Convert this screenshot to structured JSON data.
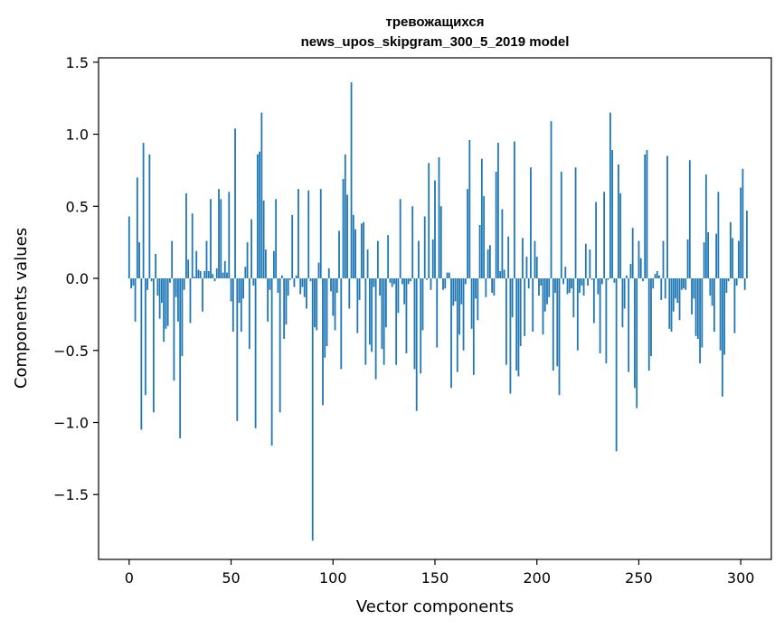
{
  "chart_data": {
    "type": "bar",
    "title_lines": [
      "тревожащихся",
      "news_upos_skipgram_300_5_2019 model"
    ],
    "xlabel": "Vector components",
    "ylabel": "Components values",
    "xlim": [
      -15,
      315
    ],
    "ylim": [
      -1.95,
      1.53
    ],
    "xticks": [
      0,
      50,
      100,
      150,
      200,
      250,
      300
    ],
    "yticks": [
      -1.5,
      -1.0,
      -0.5,
      0.0,
      0.5,
      1.0,
      1.5
    ],
    "xtick_labels": [
      "0",
      "50",
      "100",
      "150",
      "200",
      "250",
      "300"
    ],
    "ytick_labels": [
      "−1.5",
      "−1.0",
      "−0.5",
      "0.0",
      "0.5",
      "1.0",
      "1.5"
    ],
    "bar_color": "#1f77b4",
    "x_start": 0,
    "values": [
      0.43,
      -0.07,
      -0.05,
      -0.3,
      0.7,
      0.25,
      -1.05,
      0.94,
      -0.81,
      -0.08,
      0.86,
      -0.02,
      -0.93,
      0.17,
      -0.12,
      -0.28,
      -0.17,
      -0.44,
      -0.35,
      -0.33,
      -0.03,
      0.26,
      -0.71,
      -0.13,
      -0.3,
      -1.11,
      -0.54,
      -0.08,
      0.59,
      0.13,
      -0.31,
      0.45,
      0.01,
      0.19,
      0.06,
      0.05,
      -0.23,
      0.05,
      0.26,
      0.05,
      0.55,
      0.03,
      -0.02,
      0.07,
      0.62,
      0.55,
      0.04,
      0.12,
      0.04,
      0.6,
      -0.16,
      -0.37,
      1.04,
      -0.99,
      -0.17,
      -0.37,
      -0.14,
      0.08,
      0.25,
      -0.49,
      0.41,
      -0.05,
      -1.04,
      0.86,
      0.88,
      1.15,
      0.54,
      0.2,
      -0.3,
      -0.08,
      -1.16,
      0.19,
      0.55,
      -0.1,
      -0.93,
      0.02,
      -0.42,
      -0.32,
      -0.12,
      -0.01,
      0.44,
      -0.06,
      0.02,
      0.62,
      -0.11,
      -0.06,
      -0.13,
      -0.21,
      0.61,
      -0.02,
      -1.82,
      -0.34,
      -0.36,
      0.11,
      0.62,
      -0.88,
      -0.55,
      -0.47,
      0.07,
      -0.09,
      -0.26,
      -0.36,
      -0.1,
      0.33,
      -0.63,
      0.69,
      0.86,
      0.58,
      -0.21,
      1.36,
      0.44,
      0.34,
      -0.38,
      -0.15,
      0.38,
      0.39,
      -0.6,
      0.2,
      -0.46,
      -0.51,
      -0.06,
      -0.7,
      0.26,
      -0.12,
      -0.49,
      -0.6,
      -0.34,
      0.3,
      -0.03,
      -0.06,
      -0.04,
      -0.6,
      -0.24,
      0.55,
      -0.04,
      -0.18,
      -0.52,
      -0.04,
      -0.02,
      0.5,
      -0.63,
      -0.92,
      0.26,
      -0.66,
      -0.36,
      0.43,
      -0.01,
      0.8,
      -0.08,
      0.27,
      0.68,
      -0.48,
      0.84,
      0.5,
      -0.08,
      -0.07,
      0.04,
      0.04,
      -0.76,
      -0.19,
      -0.16,
      -0.65,
      -0.39,
      -0.18,
      -0.5,
      -0.04,
      0.62,
      0.96,
      -0.35,
      -0.67,
      -0.14,
      -0.29,
      0.37,
      0.83,
      0.57,
      -0.13,
      0.2,
      0.23,
      -0.1,
      -0.12,
      0.74,
      0.94,
      0.05,
      0.48,
      0.06,
      -0.6,
      0.29,
      -0.8,
      -0.27,
      0.95,
      -0.64,
      -0.68,
      -0.47,
      0.28,
      -0.4,
      0.15,
      -0.07,
      0.77,
      -0.37,
      0.26,
      0.15,
      -0.12,
      -0.05,
      -0.39,
      -0.23,
      -0.18,
      -0.13,
      1.09,
      -0.64,
      -0.1,
      -0.61,
      -0.81,
      0.74,
      -0.04,
      0.08,
      -0.11,
      -0.1,
      -0.07,
      -0.27,
      0.77,
      -0.5,
      -0.1,
      -0.05,
      -0.12,
      0.24,
      -0.05,
      0.2,
      -0.01,
      -0.31,
      0.53,
      -0.11,
      -0.52,
      -0.04,
      0.6,
      -0.59,
      -0.01,
      1.15,
      0.89,
      -0.03,
      -1.2,
      0.79,
      0.59,
      -0.34,
      -0.21,
      0.02,
      -0.65,
      0.1,
      0.35,
      -0.76,
      -0.9,
      0.26,
      0.14,
      -0.02,
      0.86,
      0.89,
      -0.64,
      -0.54,
      -0.07,
      0.03,
      0.05,
      0.02,
      -0.15,
      0.26,
      -0.14,
      0.85,
      -0.35,
      -0.37,
      -0.23,
      -0.14,
      -0.17,
      -0.29,
      -0.08,
      -0.07,
      -0.08,
      0.27,
      0.82,
      -0.25,
      -0.14,
      -0.4,
      -0.42,
      -0.59,
      -0.48,
      0.25,
      0.72,
      0.32,
      -0.12,
      -0.19,
      -0.37,
      0.31,
      0.6,
      -0.5,
      -0.82,
      -0.53,
      -0.1,
      -0.02,
      0.39,
      0.28,
      -0.38,
      -0.05,
      0.26,
      0.63,
      0.76,
      -0.08,
      0.47
    ]
  }
}
